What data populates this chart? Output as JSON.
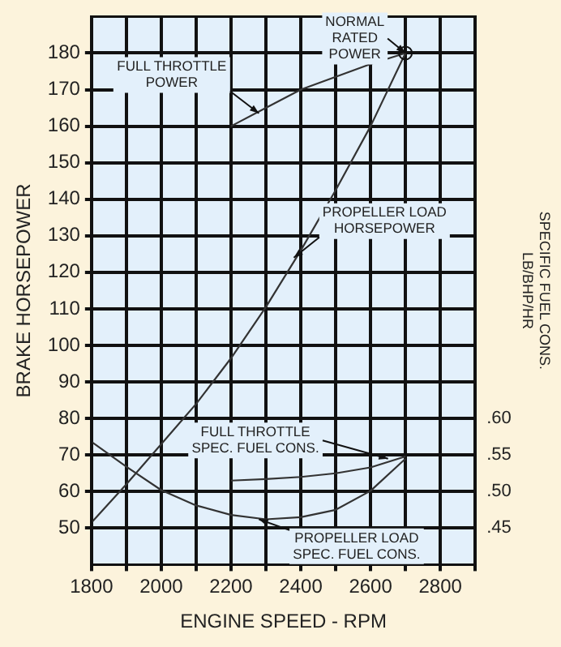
{
  "chart_data": {
    "type": "line",
    "xlabel": "ENGINE SPEED - RPM",
    "ylabel": "BRAKE HORSEPOWER",
    "y2label": "SPECIFIC FUEL CONS. LB/BHP/HR",
    "xlim": [
      1800,
      2900
    ],
    "xticks": [
      1800,
      {
        "value": 1900,
        "label": null
      },
      2000,
      {
        "value": 2100,
        "label": null
      },
      2200,
      {
        "value": 2300,
        "label": null
      },
      2400,
      {
        "value": 2500,
        "label": null
      },
      2600,
      {
        "value": 2700,
        "label": null
      },
      2800,
      {
        "value": 2900,
        "label": null
      }
    ],
    "ylim": [
      40,
      190
    ],
    "yticks": [
      50,
      60,
      70,
      80,
      90,
      100,
      110,
      120,
      130,
      140,
      150,
      160,
      170,
      180
    ],
    "y2lim": [
      0.4,
      1.15
    ],
    "y2ticks": [
      {
        "value": 0.45,
        "label": ".45"
      },
      {
        "value": 0.5,
        "label": ".50"
      },
      {
        "value": 0.55,
        "label": ".55"
      },
      {
        "value": 0.6,
        "label": ".60"
      }
    ],
    "series": [
      {
        "color": "#333333",
        "x": [
          2200,
          2300,
          2400,
          2500,
          2600,
          2700
        ],
        "values": [
          160,
          165,
          170,
          173.5,
          177,
          180
        ]
      },
      {
        "color": "#333333",
        "x": [
          1800,
          1900,
          2000,
          2100,
          2200,
          2300,
          2400,
          2500,
          2600,
          2700
        ],
        "values": [
          51.5,
          62,
          73,
          84,
          96.5,
          110.5,
          126,
          142.5,
          160,
          180
        ]
      },
      {
        "color": "#333333",
        "axis": "y2",
        "x": [
          2200,
          2300,
          2400,
          2500,
          2600,
          2700
        ],
        "values": [
          0.515,
          0.517,
          0.52,
          0.525,
          0.533,
          0.548
        ]
      },
      {
        "color": "#333333",
        "axis": "y2",
        "x": [
          1800,
          1900,
          2000,
          2100,
          2200,
          2300,
          2400,
          2500,
          2600,
          2700
        ],
        "values": [
          0.568,
          0.534,
          0.502,
          0.481,
          0.468,
          0.462,
          0.465,
          0.475,
          0.501,
          0.545
        ]
      }
    ],
    "annotations": [
      {
        "text": "NORMAL RATED POWER",
        "x": 2700,
        "y": 180
      },
      {
        "text": "FULL THROTTLE POWER",
        "x": 2280,
        "y": 163.5
      },
      {
        "text": "PROPELLER LOAD HORSEPOWER",
        "x": 2380,
        "y": 124
      },
      {
        "text": "FULL THROTTLE SPEC. FUEL CONS.",
        "x": 2650,
        "y": 69
      },
      {
        "text": "PROPELLER LOAD SPEC. FUEL CONS.",
        "x": 2280,
        "y": 52.4
      }
    ],
    "grid": true,
    "legend": false,
    "marker": "none",
    "line_style": "solid"
  }
}
